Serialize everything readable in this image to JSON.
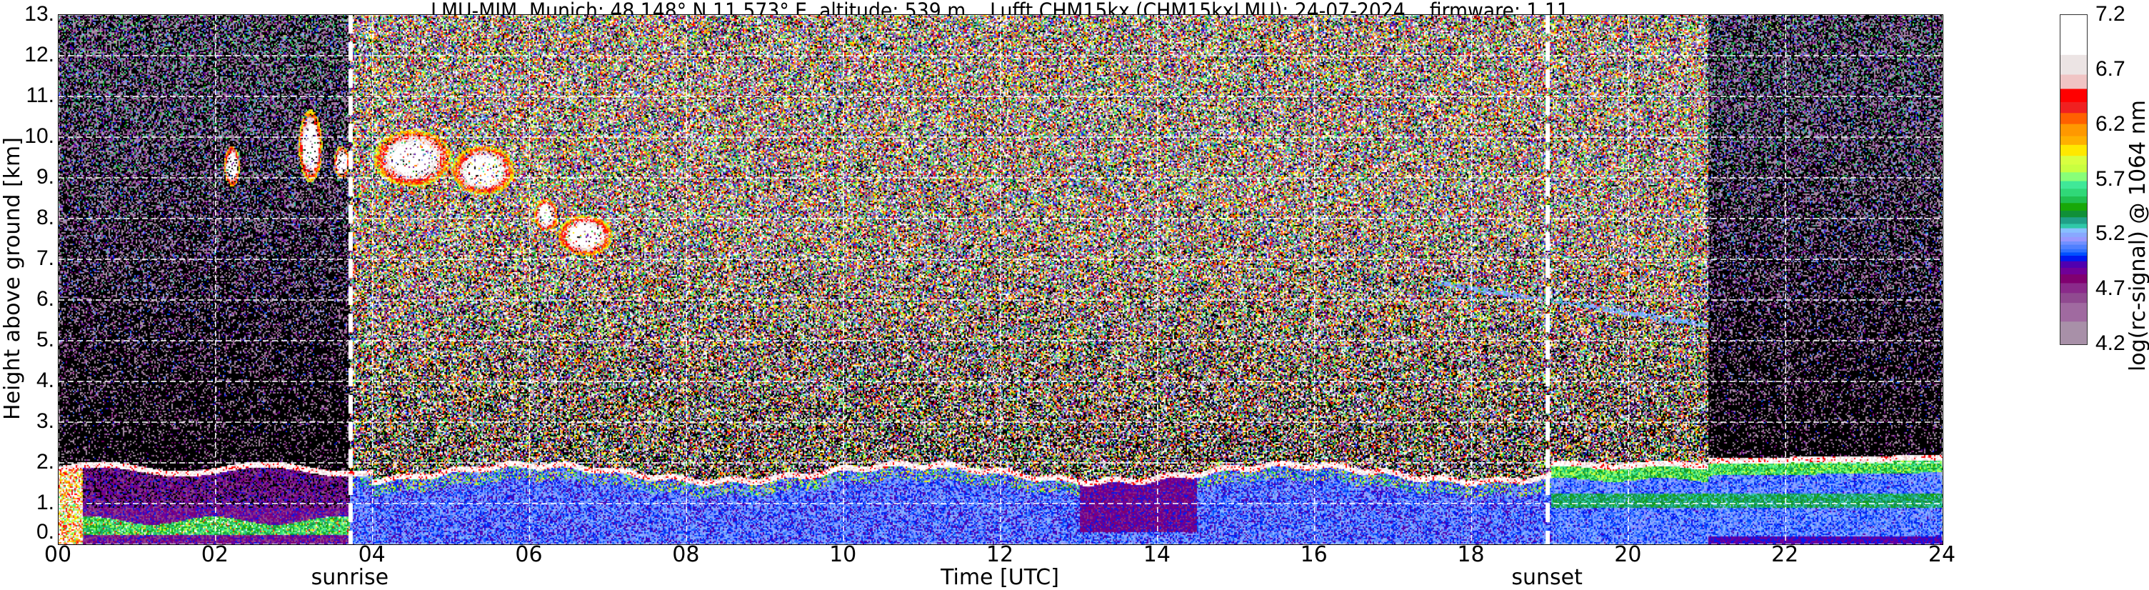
{
  "chart_data": {
    "type": "heatmap",
    "title": "LMU-MIM, Munich; 48.148° N 11.573° E, altitude: 539 m    Lufft CHM15kx (CHM15kxLMU): 24-07-2024    firmware: 1.11",
    "xlabel": "Time [UTC]",
    "ylabel": "Height above ground [km]",
    "xlim": [
      0,
      24
    ],
    "ylim": [
      0,
      13
    ],
    "x_ticks": [
      0,
      2,
      4,
      6,
      8,
      10,
      12,
      14,
      16,
      18,
      20,
      22,
      24
    ],
    "x_tick_labels": [
      "00",
      "02",
      "04",
      "06",
      "08",
      "10",
      "12",
      "14",
      "16",
      "18",
      "20",
      "22",
      "24"
    ],
    "y_ticks": [
      0,
      1,
      2,
      3,
      4,
      5,
      6,
      7,
      8,
      9,
      10,
      11,
      12,
      13
    ],
    "y_tick_labels": [
      "0.",
      "1.",
      "2.",
      "3.",
      "4.",
      "5.",
      "6.",
      "7.",
      "8.",
      "9.",
      "10.",
      "11.",
      "12.",
      "13."
    ],
    "grid": true,
    "annotations": [
      {
        "label": "sunrise",
        "x": 3.72
      },
      {
        "label": "sunset",
        "x": 18.97
      }
    ],
    "colorbar": {
      "label": "log(rc-signal) @ 1064 nm",
      "range": [
        4.2,
        7.2
      ],
      "ticks": [
        4.2,
        4.7,
        5.2,
        5.7,
        6.2,
        6.7,
        7.2
      ],
      "tick_labels": [
        "4.2",
        "4.7",
        "5.2",
        "5.7",
        "6.2",
        "6.7",
        "7.2"
      ],
      "boundaries": [
        4.2,
        4.41,
        4.58,
        4.67,
        4.76,
        4.84,
        4.9,
        4.96,
        5.01,
        5.04,
        5.07,
        5.11,
        5.14,
        5.18,
        5.22,
        5.26,
        5.3,
        5.36,
        5.42,
        5.49,
        5.55,
        5.62,
        5.69,
        5.77,
        5.84,
        5.92,
        6.02,
        6.1,
        6.21,
        6.31,
        6.41,
        6.53,
        6.66,
        6.84,
        7.2
      ],
      "colors": [
        "#a890a8",
        "#a06aa0",
        "#904a90",
        "#8a2a8a",
        "#800070",
        "#700098",
        "#5000b0",
        "#0018f0",
        "#0050ff",
        "#3070ff",
        "#5080ff",
        "#7090ff",
        "#9898ff",
        "#88a8ff",
        "#88c0ff",
        "#30c8a8",
        "#20a088",
        "#109038",
        "#18a808",
        "#20c050",
        "#30d878",
        "#40e898",
        "#88ff78",
        "#c8ff40",
        "#d8ff40",
        "#ffe800",
        "#ffb000",
        "#ff9800",
        "#ff6000",
        "#f02020",
        "#ff0000",
        "#f0c4c4",
        "#ece4e4",
        "#ffffff"
      ],
      "below_range_color": "#000000"
    }
  }
}
